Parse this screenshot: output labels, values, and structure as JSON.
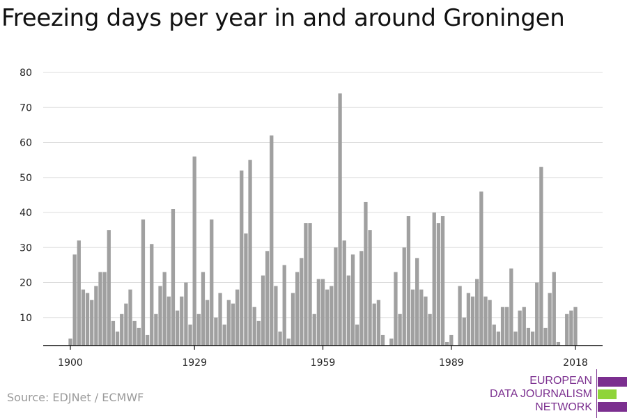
{
  "title": "Freezing days per year in and around Groningen",
  "source": "Source: EDJNet / ECMWF",
  "logo": {
    "lines": [
      "EUROPEAN",
      "DATA JOURNALISM",
      "NETWORK"
    ],
    "colors": {
      "purple": "#7b2f8f",
      "green": "#8fd43a"
    }
  },
  "colors": {
    "bar": "#a0a0a0",
    "grid": "#dddddd",
    "axis": "#111111",
    "tick_text": "#222222"
  },
  "chart_data": {
    "type": "bar",
    "title": "Freezing days per year in and around Groningen",
    "xlabel": "",
    "ylabel": "",
    "ylim": [
      2,
      80
    ],
    "yticks": [
      10,
      20,
      30,
      40,
      50,
      60,
      70,
      80
    ],
    "xticks": [
      1900,
      1929,
      1959,
      1989,
      2018
    ],
    "grid": true,
    "categories": [
      1900,
      1901,
      1902,
      1903,
      1904,
      1905,
      1906,
      1907,
      1908,
      1909,
      1910,
      1911,
      1912,
      1913,
      1914,
      1915,
      1916,
      1917,
      1918,
      1919,
      1920,
      1921,
      1922,
      1923,
      1924,
      1925,
      1926,
      1927,
      1928,
      1929,
      1930,
      1931,
      1932,
      1933,
      1934,
      1935,
      1936,
      1937,
      1938,
      1939,
      1940,
      1941,
      1942,
      1943,
      1944,
      1945,
      1946,
      1947,
      1948,
      1949,
      1950,
      1951,
      1952,
      1953,
      1954,
      1955,
      1956,
      1957,
      1958,
      1959,
      1960,
      1961,
      1962,
      1963,
      1964,
      1965,
      1966,
      1967,
      1968,
      1969,
      1970,
      1971,
      1972,
      1973,
      1974,
      1975,
      1976,
      1977,
      1978,
      1979,
      1980,
      1981,
      1982,
      1983,
      1984,
      1985,
      1986,
      1987,
      1988,
      1989,
      1990,
      1991,
      1992,
      1993,
      1994,
      1995,
      1996,
      1997,
      1998,
      1999,
      2000,
      2001,
      2002,
      2003,
      2004,
      2005,
      2006,
      2007,
      2008,
      2009,
      2010,
      2011,
      2012,
      2013,
      2014,
      2015,
      2016,
      2017,
      2018
    ],
    "values": [
      4,
      28,
      32,
      18,
      17,
      15,
      19,
      23,
      23,
      35,
      9,
      6,
      11,
      14,
      18,
      9,
      7,
      38,
      5,
      31,
      11,
      19,
      23,
      16,
      41,
      12,
      16,
      20,
      8,
      56,
      11,
      23,
      15,
      38,
      10,
      17,
      8,
      15,
      14,
      18,
      52,
      34,
      55,
      13,
      9,
      22,
      29,
      62,
      19,
      6,
      25,
      4,
      17,
      23,
      27,
      37,
      37,
      11,
      21,
      21,
      18,
      19,
      30,
      74,
      32,
      22,
      28,
      8,
      29,
      43,
      35,
      14,
      15,
      5,
      2,
      4,
      23,
      11,
      30,
      39,
      18,
      27,
      18,
      16,
      11,
      40,
      37,
      39,
      3,
      5,
      2,
      19,
      10,
      17,
      16,
      21,
      46,
      16,
      15,
      8,
      6,
      13,
      13,
      24,
      6,
      12,
      13,
      7,
      6,
      20,
      53,
      7,
      17,
      23,
      3,
      2,
      11,
      12,
      13
    ]
  }
}
